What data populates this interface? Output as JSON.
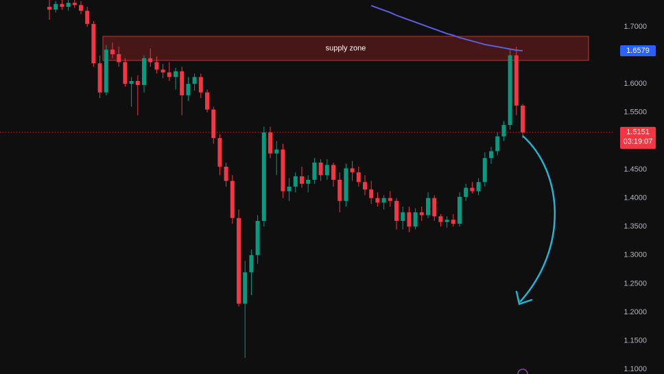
{
  "chart_data": {
    "type": "candlestick",
    "up_color": "#089981",
    "down_color": "#f23645",
    "open": [
      1.735,
      1.73,
      1.74,
      1.735,
      1.742,
      1.738,
      1.728,
      1.705,
      1.636,
      1.585,
      1.66,
      1.652,
      1.638,
      1.6,
      1.605,
      1.598,
      1.645,
      1.638,
      1.625,
      1.62,
      1.612,
      1.622,
      1.58,
      1.6,
      1.612,
      1.585,
      1.555,
      1.505,
      1.455,
      1.43,
      1.365,
      1.215,
      1.27,
      1.3,
      1.36,
      1.515,
      1.478,
      1.485,
      1.412,
      1.42,
      1.438,
      1.425,
      1.432,
      1.462,
      1.44,
      1.458,
      1.432,
      1.395,
      1.452,
      1.445,
      1.428,
      1.415,
      1.4,
      1.392,
      1.4,
      1.395,
      1.36,
      1.375,
      1.35,
      1.375,
      1.37,
      1.4,
      1.368,
      1.358,
      1.362,
      1.355,
      1.402,
      1.418,
      1.412,
      1.428,
      1.47,
      1.482,
      1.508,
      1.528,
      1.65,
      1.562
    ],
    "high": [
      1.747,
      1.745,
      1.747,
      1.747,
      1.747,
      1.745,
      1.735,
      1.71,
      1.65,
      1.668,
      1.672,
      1.665,
      1.645,
      1.612,
      1.615,
      1.65,
      1.662,
      1.648,
      1.635,
      1.638,
      1.628,
      1.63,
      1.612,
      1.618,
      1.618,
      1.59,
      1.56,
      1.512,
      1.462,
      1.44,
      1.38,
      1.29,
      1.31,
      1.37,
      1.525,
      1.525,
      1.5,
      1.495,
      1.435,
      1.445,
      1.455,
      1.44,
      1.47,
      1.468,
      1.468,
      1.462,
      1.445,
      1.46,
      1.465,
      1.455,
      1.44,
      1.43,
      1.41,
      1.405,
      1.412,
      1.4,
      1.385,
      1.385,
      1.382,
      1.385,
      1.41,
      1.405,
      1.372,
      1.368,
      1.372,
      1.41,
      1.425,
      1.428,
      1.435,
      1.48,
      1.49,
      1.515,
      1.535,
      1.66,
      1.665,
      1.565
    ],
    "low": [
      1.712,
      1.725,
      1.73,
      1.728,
      1.733,
      1.722,
      1.7,
      1.63,
      1.575,
      1.58,
      1.645,
      1.63,
      1.595,
      1.56,
      1.545,
      1.585,
      1.63,
      1.618,
      1.61,
      1.605,
      1.59,
      1.545,
      1.57,
      1.588,
      1.575,
      1.55,
      1.495,
      1.44,
      1.42,
      1.355,
      1.21,
      1.12,
      1.23,
      1.285,
      1.35,
      1.47,
      1.44,
      1.4,
      1.395,
      1.41,
      1.418,
      1.41,
      1.425,
      1.43,
      1.432,
      1.42,
      1.375,
      1.385,
      1.43,
      1.42,
      1.405,
      1.39,
      1.385,
      1.38,
      1.385,
      1.345,
      1.345,
      1.34,
      1.345,
      1.36,
      1.365,
      1.36,
      1.35,
      1.348,
      1.35,
      1.35,
      1.395,
      1.408,
      1.405,
      1.42,
      1.46,
      1.475,
      1.5,
      1.52,
      1.545,
      1.505
    ],
    "close": [
      1.73,
      1.74,
      1.735,
      1.742,
      1.738,
      1.728,
      1.705,
      1.636,
      1.585,
      1.66,
      1.652,
      1.638,
      1.6,
      1.605,
      1.598,
      1.645,
      1.638,
      1.625,
      1.62,
      1.612,
      1.622,
      1.58,
      1.6,
      1.612,
      1.585,
      1.555,
      1.505,
      1.455,
      1.43,
      1.365,
      1.215,
      1.27,
      1.3,
      1.36,
      1.515,
      1.478,
      1.485,
      1.412,
      1.42,
      1.438,
      1.425,
      1.432,
      1.462,
      1.44,
      1.458,
      1.432,
      1.395,
      1.452,
      1.445,
      1.428,
      1.415,
      1.4,
      1.392,
      1.4,
      1.395,
      1.36,
      1.375,
      1.35,
      1.375,
      1.37,
      1.4,
      1.368,
      1.358,
      1.362,
      1.355,
      1.402,
      1.418,
      1.412,
      1.428,
      1.47,
      1.482,
      1.508,
      1.528,
      1.65,
      1.562,
      1.5151
    ],
    "series": [
      {
        "color": "#5b5fe0",
        "values": [
          null,
          null,
          null,
          null,
          null,
          null,
          null,
          null,
          null,
          null,
          null,
          null,
          null,
          null,
          null,
          null,
          null,
          null,
          null,
          null,
          null,
          null,
          null,
          null,
          null,
          null,
          null,
          null,
          null,
          null,
          null,
          null,
          null,
          null,
          null,
          null,
          null,
          null,
          null,
          null,
          null,
          null,
          null,
          null,
          null,
          null,
          null,
          null,
          null,
          null,
          null,
          1.737,
          1.733,
          1.729,
          1.725,
          1.72,
          1.716,
          1.712,
          1.708,
          1.704,
          1.7,
          1.696,
          1.692,
          1.688,
          1.685,
          1.681,
          1.678,
          1.675,
          1.672,
          1.669,
          1.667,
          1.665,
          1.663,
          1.661,
          1.659,
          1.6579
        ]
      }
    ],
    "ylim": [
      1.0918,
      1.7469
    ],
    "yticks": [
      {
        "value": 1.7,
        "label": "1.7000"
      },
      {
        "value": 1.6,
        "label": "1.6000"
      },
      {
        "value": 1.55,
        "label": "1.5500"
      },
      {
        "value": 1.45,
        "label": "1.4500"
      },
      {
        "value": 1.4,
        "label": "1.4000"
      },
      {
        "value": 1.35,
        "label": "1.3500"
      },
      {
        "value": 1.3,
        "label": "1.3000"
      },
      {
        "value": 1.25,
        "label": "1.2500"
      },
      {
        "value": 1.2,
        "label": "1.2000"
      },
      {
        "value": 1.15,
        "label": "1.1500"
      },
      {
        "value": 1.1,
        "label": "1.1000"
      }
    ],
    "zones": [
      {
        "label": "supply zone",
        "from": 1.6411,
        "to": 1.6832
      }
    ],
    "ma_price": {
      "value": 1.6579,
      "label": "1.6579"
    },
    "last_price": {
      "value": 1.5151,
      "label": "1.5151",
      "countdown": "03:19:07"
    }
  }
}
